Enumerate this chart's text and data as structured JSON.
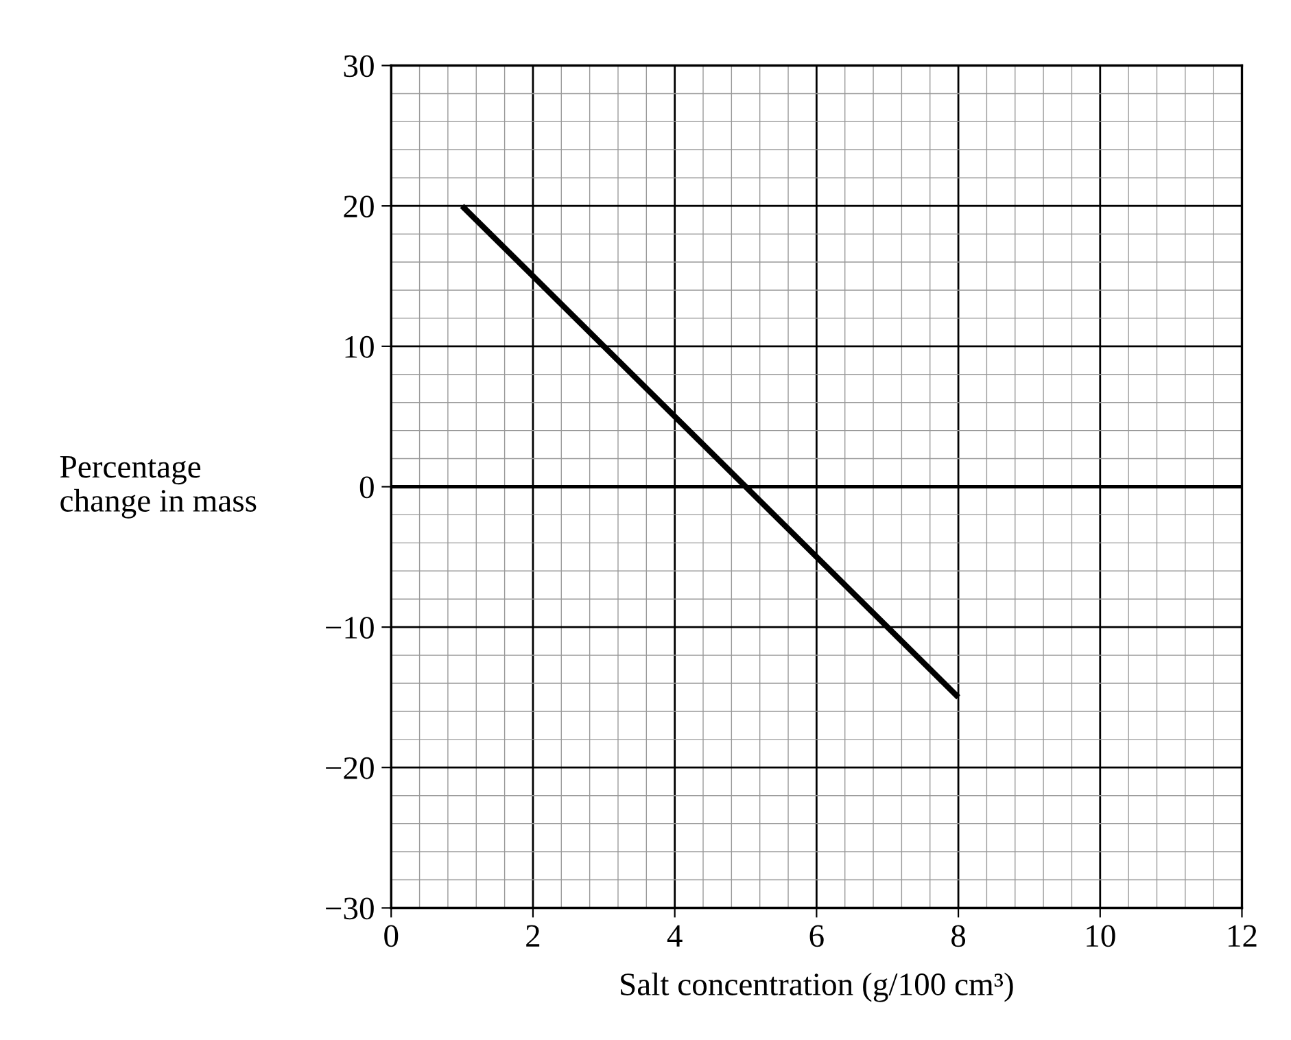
{
  "chart_data": {
    "type": "line",
    "xlabel": "Salt concentration (g/100 cm³)",
    "ylabel": "Percentage\nchange in mass",
    "series": [
      {
        "color": "#000000",
        "x": [
          1,
          8
        ],
        "values": [
          20,
          -15
        ]
      }
    ],
    "xlim": [
      0,
      12
    ],
    "xticks": [
      0,
      2,
      4,
      6,
      8,
      10,
      12
    ],
    "ylim": [
      -30,
      30
    ],
    "yticks": [
      -30,
      -20,
      -10,
      0,
      10,
      20,
      30
    ],
    "ref_lines": [
      {
        "axis": "y",
        "value": 0,
        "color": "#000000"
      }
    ],
    "grid": true,
    "legend": false,
    "marker": "none",
    "line_style": "solid"
  }
}
